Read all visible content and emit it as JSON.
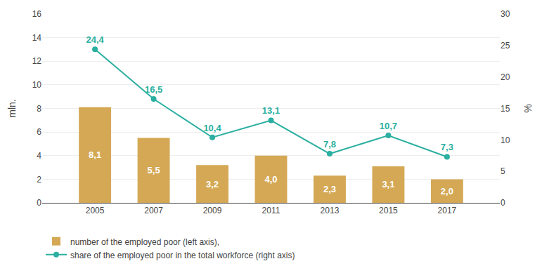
{
  "chart_data": {
    "type": "bar",
    "x": [
      2005,
      2007,
      2009,
      2011,
      2013,
      2015,
      2017
    ],
    "xlim": [
      2003.2,
      2018.8
    ],
    "xticks": [
      2005,
      2007,
      2009,
      2011,
      2013,
      2015,
      2017
    ],
    "ylabel": "mln.",
    "y2label": "%",
    "ylim": [
      0,
      16
    ],
    "yticks": [
      0,
      2,
      4,
      6,
      8,
      10,
      12,
      14,
      16
    ],
    "y2lim": [
      0,
      30
    ],
    "y2ticks": [
      0,
      5,
      10,
      15,
      20,
      25,
      30
    ],
    "grid": true,
    "legend": "lower left",
    "data_labels": true,
    "series": [
      {
        "name": "number of the employed poor (left axis),",
        "type": "bar",
        "color": "#D4A855",
        "values": [
          8.1,
          5.5,
          3.2,
          4.0,
          2.3,
          3.1,
          2.0
        ],
        "value_labels": [
          "8,1",
          "5,5",
          "3,2",
          "4,0",
          "2,3",
          "3,1",
          "2,0"
        ]
      },
      {
        "name": "share of the employed poor in the total workforce (right axis)",
        "type": "line",
        "axis": "y2",
        "color": "#2AAFA0",
        "marker": "circle",
        "values": [
          24.4,
          16.5,
          10.4,
          13.1,
          7.8,
          10.7,
          7.3
        ],
        "value_labels": [
          "24,4",
          "16,5",
          "10,4",
          "13,1",
          "7,8",
          "10,7",
          "7,3"
        ]
      }
    ]
  }
}
